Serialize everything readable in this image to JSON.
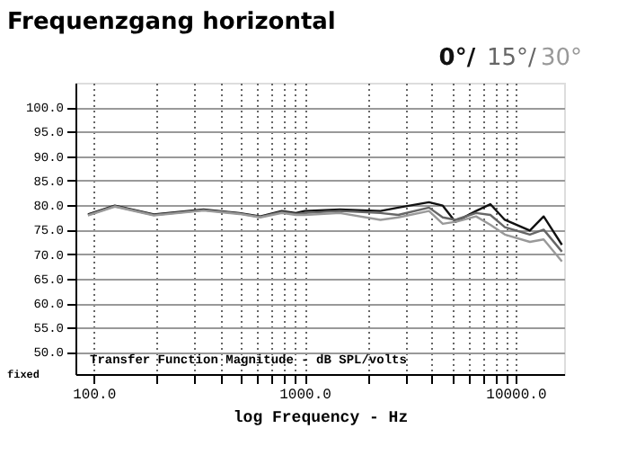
{
  "chart_data": {
    "type": "line",
    "title": "Frequenzgang horizontal",
    "xlabel": "log Frequency - Hz",
    "annotations": [
      "Transfer Function Magnitude - dB SPL/volts",
      "fixed"
    ],
    "x": [
      94,
      126,
      193,
      332,
      490,
      617,
      780,
      910,
      1000,
      1470,
      2290,
      2780,
      3890,
      4520,
      5190,
      6500,
      7600,
      8900,
      11700,
      13600,
      16600
    ],
    "series": [
      {
        "name": "0°/",
        "color": "#111111",
        "values": [
          78.1,
          79.9,
          78.1,
          79.1,
          78.4,
          77.7,
          78.8,
          78.4,
          78.8,
          79.1,
          78.8,
          79.5,
          80.6,
          79.9,
          76.6,
          78.8,
          80.2,
          77.0,
          74.8,
          77.7,
          71.9
        ]
      },
      {
        "name": "15°/",
        "color": "#666666",
        "values": [
          78.0,
          79.8,
          78.0,
          79.0,
          78.3,
          77.6,
          78.6,
          78.2,
          78.4,
          78.8,
          78.4,
          78.0,
          79.5,
          77.5,
          77.0,
          78.4,
          78.0,
          75.5,
          74.0,
          75.0,
          70.5
        ]
      },
      {
        "name": "30°",
        "color": "#999999",
        "values": [
          77.9,
          79.7,
          77.9,
          78.9,
          78.2,
          77.5,
          78.4,
          78.0,
          78.0,
          78.4,
          77.0,
          77.5,
          78.8,
          76.2,
          76.6,
          77.7,
          76.0,
          74.0,
          72.5,
          73.0,
          68.5
        ]
      }
    ],
    "xlim": [
      82,
      17000
    ],
    "ylim": [
      45.5,
      105
    ],
    "xticks": [
      {
        "value": 100,
        "label": "100.0"
      },
      {
        "value": 200,
        "label": null
      },
      {
        "value": 300,
        "label": null
      },
      {
        "value": 400,
        "label": null
      },
      {
        "value": 500,
        "label": null
      },
      {
        "value": 600,
        "label": null
      },
      {
        "value": 700,
        "label": null
      },
      {
        "value": 800,
        "label": null
      },
      {
        "value": 900,
        "label": null
      },
      {
        "value": 1000,
        "label": "1000.0"
      },
      {
        "value": 2000,
        "label": null
      },
      {
        "value": 3000,
        "label": null
      },
      {
        "value": 4000,
        "label": null
      },
      {
        "value": 5000,
        "label": null
      },
      {
        "value": 6000,
        "label": null
      },
      {
        "value": 7000,
        "label": null
      },
      {
        "value": 8000,
        "label": null
      },
      {
        "value": 9000,
        "label": null
      },
      {
        "value": 10000,
        "label": "10000.0"
      }
    ],
    "yticks": [
      {
        "value": 50,
        "label": "50.0"
      },
      {
        "value": 55,
        "label": "55.0"
      },
      {
        "value": 60,
        "label": "60.0"
      },
      {
        "value": 65,
        "label": "65.0"
      },
      {
        "value": 70,
        "label": "70.0"
      },
      {
        "value": 75,
        "label": "75.0"
      },
      {
        "value": 80,
        "label": "80.0"
      },
      {
        "value": 85,
        "label": "85.0"
      },
      {
        "value": 90,
        "label": "90.0"
      },
      {
        "value": 95,
        "label": "95.0"
      },
      {
        "value": 100,
        "label": "100.0"
      }
    ],
    "log": "x",
    "grid": true,
    "legend": "top right",
    "marker": "none",
    "line_style": "solid"
  }
}
